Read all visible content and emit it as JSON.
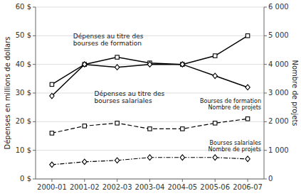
{
  "chart_data": {
    "type": "line",
    "categories": [
      "2000-01",
      "2001-02",
      "2002-03",
      "2003-04",
      "2004-05",
      "2005-06",
      "2006-07"
    ],
    "series": [
      {
        "name": "Dépenses au titre des\nbourses de formation",
        "color": "black",
        "marker": "square",
        "line_style": "solid",
        "values": [
          33,
          40,
          42.5,
          40.5,
          40,
          43,
          50
        ]
      },
      {
        "name": "Dépenses au titre des\nbourses salariales",
        "color": "black",
        "marker": "diamond",
        "line_style": "solid",
        "values": [
          29,
          40,
          39,
          40,
          40,
          36,
          32
        ]
      },
      {
        "name": "Bourses de formation\nNombre de projets",
        "color": "black",
        "marker": "square",
        "line_style": "dashed",
        "axis": "y2",
        "values": [
          1600,
          1850,
          1950,
          1750,
          1750,
          1950,
          2100
        ]
      },
      {
        "name": "Bourses salariales\nNombre de projets",
        "color": "black",
        "marker": "diamond",
        "line_style": "dashdot",
        "axis": "y2",
        "values": [
          500,
          600,
          650,
          750,
          750,
          750,
          700
        ]
      }
    ],
    "y_label": "Dépenses en millions de dollars",
    "y2_label": "Nombre de projets",
    "ylim": [
      0,
      60
    ],
    "yticks": [
      {
        "value": 0,
        "label": "0 $"
      },
      {
        "value": 10,
        "label": "10 $"
      },
      {
        "value": 20,
        "label": "20 $"
      },
      {
        "value": 30,
        "label": "30 $"
      },
      {
        "value": 40,
        "label": "40 $"
      },
      {
        "value": 50,
        "label": "50 $"
      },
      {
        "value": 60,
        "label": "60 $"
      }
    ],
    "y2lim": [
      0,
      6000
    ],
    "y2ticks": [
      0,
      {
        "value": 1000,
        "label": "1 000"
      },
      {
        "value": 2000,
        "label": "2 000"
      },
      {
        "value": 3000,
        "label": "3 000"
      },
      {
        "value": 4000,
        "label": "4 000"
      },
      {
        "value": 5000,
        "label": "5 000"
      },
      {
        "value": 6000,
        "label": "6 000"
      }
    ],
    "grid": true
  }
}
